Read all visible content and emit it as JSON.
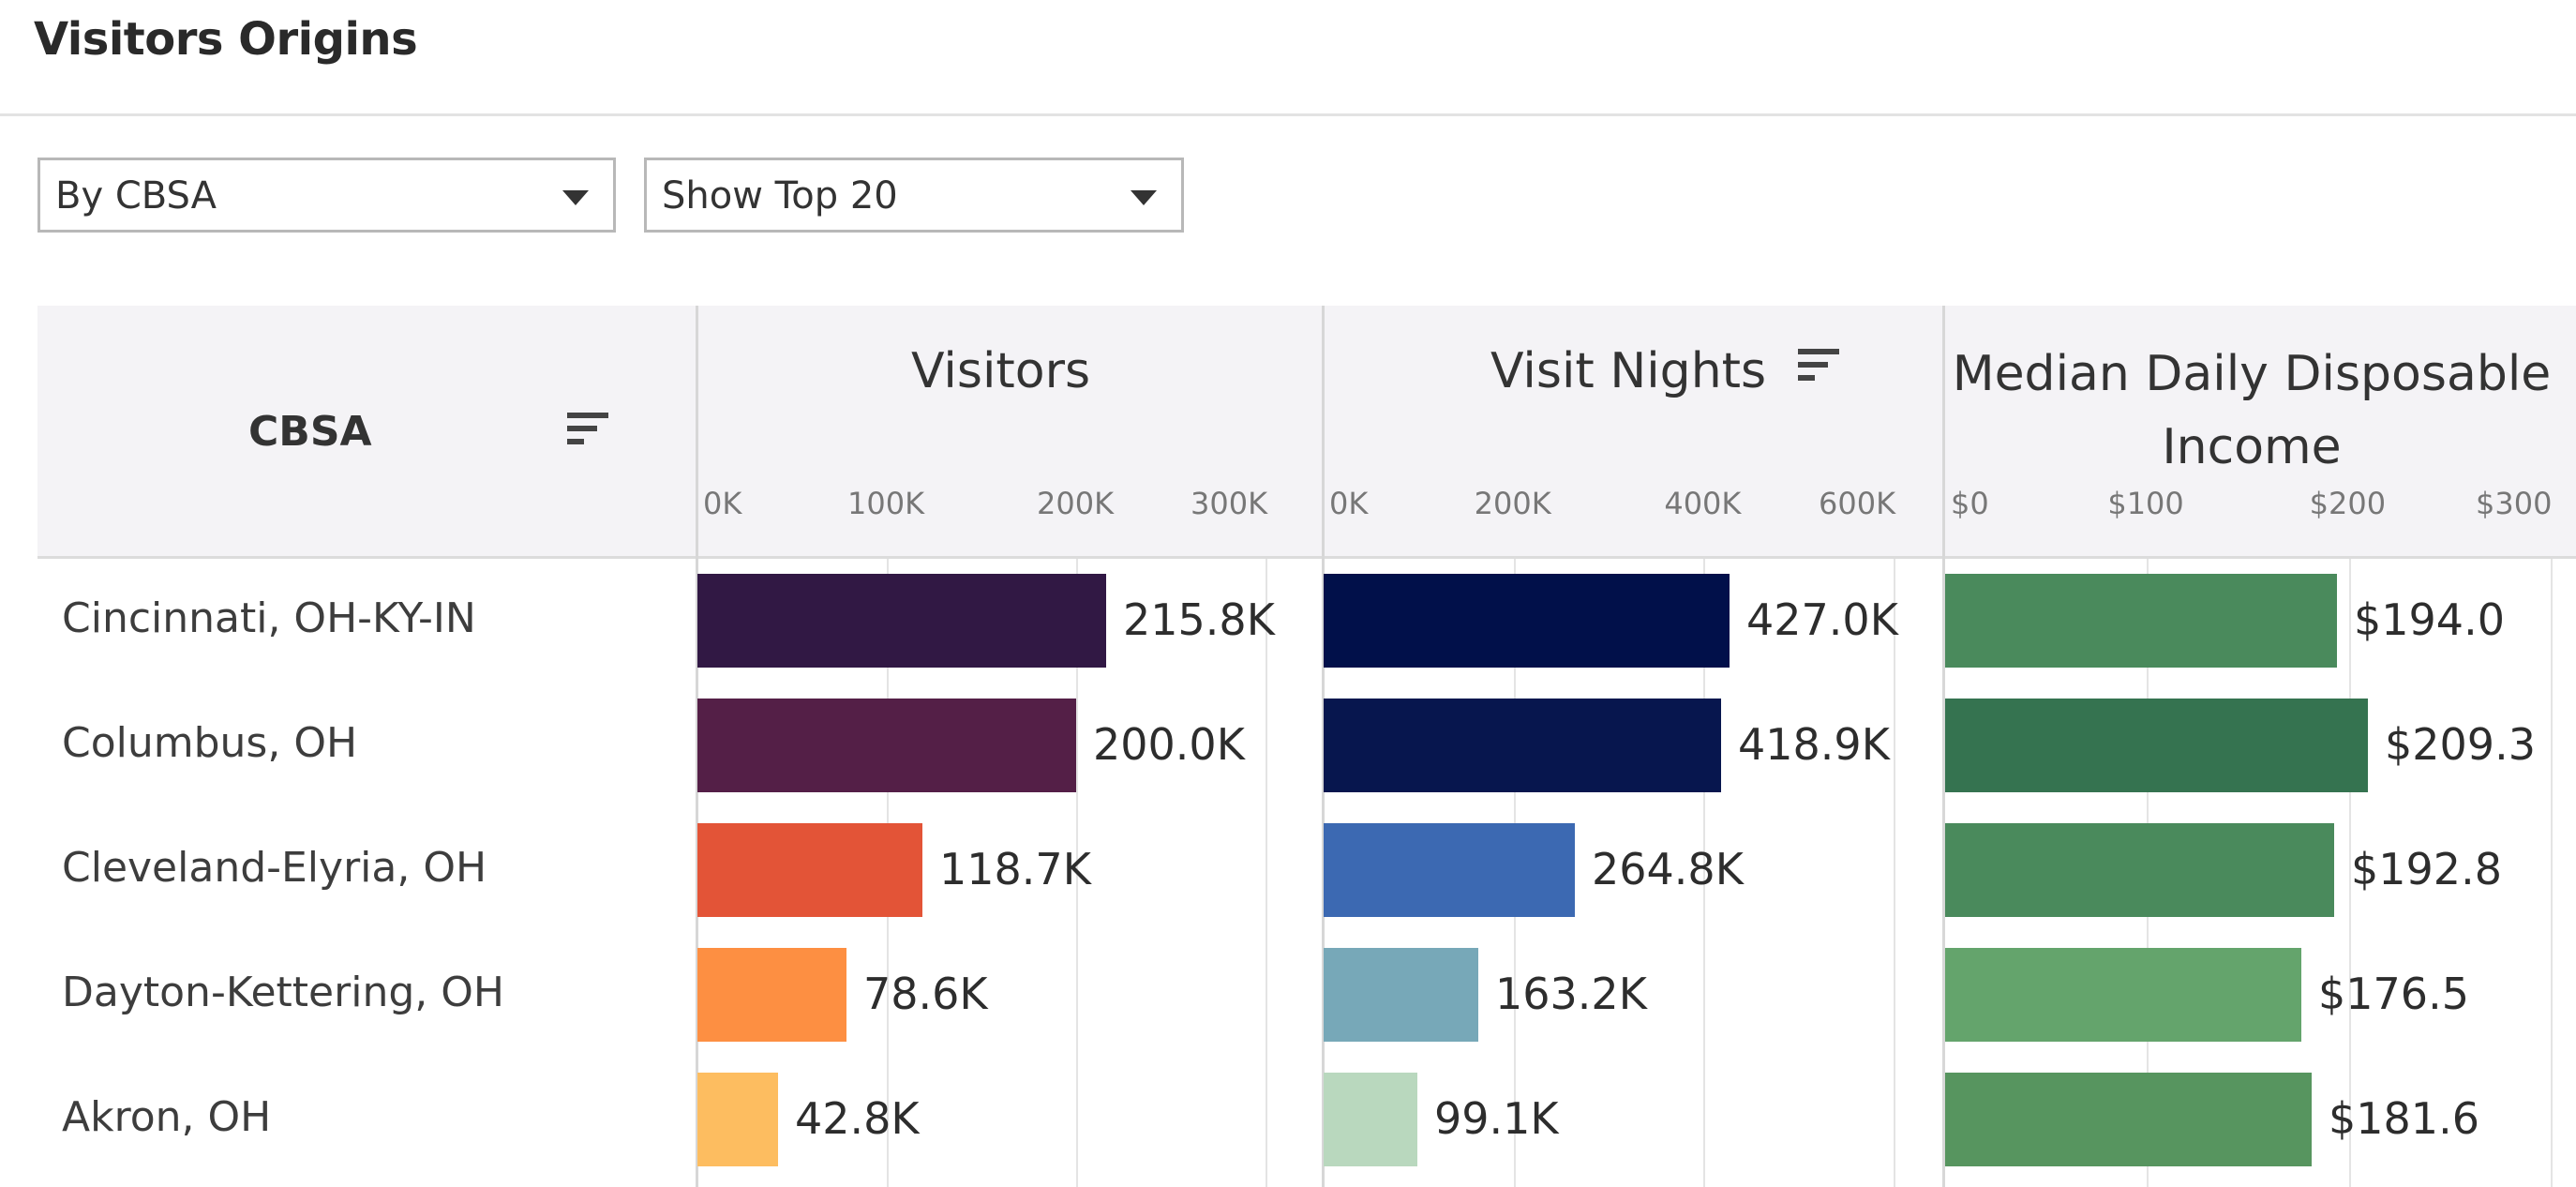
{
  "title": "Visitors Origins",
  "controls": {
    "geo_filter": "By CBSA",
    "top_filter": "Show Top 20"
  },
  "table": {
    "dimension_header": "CBSA"
  },
  "chart_data": [
    {
      "type": "bar",
      "orientation": "horizontal",
      "title": "Visitors",
      "categories": [
        "Cincinnati, OH-KY-IN",
        "Columbus, OH",
        "Cleveland-Elyria, OH",
        "Dayton-Kettering, OH",
        "Akron, OH"
      ],
      "values": [
        215800,
        200000,
        118700,
        78600,
        42800
      ],
      "value_labels": [
        "215.8K",
        "200.0K",
        "118.7K",
        "78.6K",
        "42.8K"
      ],
      "colors": [
        "#311844",
        "#541f47",
        "#e35437",
        "#fd8f42",
        "#fdbd60"
      ],
      "xlim": [
        0,
        300000
      ],
      "ticks": [
        0,
        100000,
        200000,
        300000
      ],
      "tick_labels": [
        "0K",
        "100K",
        "200K",
        "300K"
      ],
      "grid": true
    },
    {
      "type": "bar",
      "orientation": "horizontal",
      "title": "Visit Nights",
      "categories": [
        "Cincinnati, OH-KY-IN",
        "Columbus, OH",
        "Cleveland-Elyria, OH",
        "Dayton-Kettering, OH",
        "Akron, OH"
      ],
      "values": [
        427000,
        418900,
        264800,
        163200,
        99100
      ],
      "value_labels": [
        "427.0K",
        "418.9K",
        "264.8K",
        "163.2K",
        "99.1K"
      ],
      "colors": [
        "#01104a",
        "#07164e",
        "#3c69b2",
        "#77a8b8",
        "#b9d8be"
      ],
      "xlim": [
        0,
        600000
      ],
      "ticks": [
        0,
        200000,
        400000,
        600000
      ],
      "tick_labels": [
        "0K",
        "200K",
        "400K",
        "600K"
      ],
      "grid": true
    },
    {
      "type": "bar",
      "orientation": "horizontal",
      "title": "Median Daily Disposable Income",
      "categories": [
        "Cincinnati, OH-KY-IN",
        "Columbus, OH",
        "Cleveland-Elyria, OH",
        "Dayton-Kettering, OH",
        "Akron, OH"
      ],
      "values": [
        194.0,
        209.3,
        192.8,
        176.5,
        181.6
      ],
      "value_labels": [
        "$194.0",
        "$209.3",
        "$192.8",
        "$176.5",
        "$181.6"
      ],
      "colors": [
        "#4a8a5c",
        "#357350",
        "#4a8a5c",
        "#64a46c",
        "#57955f"
      ],
      "xlim": [
        0,
        300
      ],
      "ticks": [
        0,
        100,
        200,
        300
      ],
      "tick_labels": [
        "$0",
        "$100",
        "$200",
        "$300"
      ],
      "grid": true
    }
  ]
}
